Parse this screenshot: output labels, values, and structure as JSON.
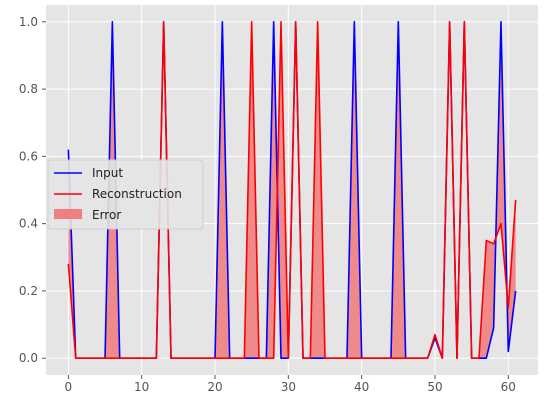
{
  "chart_data": {
    "type": "line",
    "title": "",
    "xlabel": "",
    "ylabel": "",
    "xlim": [
      -3.05,
      64.05
    ],
    "ylim": [
      -0.05,
      1.05
    ],
    "xticks": [
      0,
      10,
      20,
      30,
      40,
      50,
      60
    ],
    "yticks": [
      0.0,
      0.2,
      0.4,
      0.6,
      0.8,
      1.0
    ],
    "xtick_labels": [
      "0",
      "10",
      "20",
      "30",
      "40",
      "50",
      "60"
    ],
    "ytick_labels": [
      "0.0",
      "0.2",
      "0.4",
      "0.6",
      "0.8",
      "1.0"
    ],
    "grid": true,
    "background": "#e5e5e5",
    "legend_position": "center-left",
    "x": [
      0,
      1,
      2,
      3,
      4,
      5,
      6,
      7,
      8,
      9,
      10,
      11,
      12,
      13,
      14,
      15,
      16,
      17,
      18,
      19,
      20,
      21,
      22,
      23,
      24,
      25,
      26,
      27,
      28,
      29,
      30,
      31,
      32,
      33,
      34,
      35,
      36,
      37,
      38,
      39,
      40,
      41,
      42,
      43,
      44,
      45,
      46,
      47,
      48,
      49,
      50,
      51,
      52,
      53,
      54,
      55,
      56,
      57,
      58,
      59,
      60,
      61
    ],
    "series": [
      {
        "name": "Input",
        "color": "#0000ff",
        "values": [
          0.62,
          0,
          0,
          0,
          0,
          0,
          1,
          0,
          0,
          0,
          0,
          0,
          0,
          1,
          0,
          0,
          0,
          0,
          0,
          0,
          0,
          1,
          0,
          0,
          0,
          0,
          0,
          0,
          1,
          0,
          0,
          1,
          0,
          0,
          0,
          0,
          0,
          0,
          0,
          1,
          0,
          0,
          0,
          0,
          0,
          1,
          0,
          0,
          0,
          0,
          0.06,
          0,
          1,
          0,
          1,
          0,
          0,
          0,
          0.09,
          1,
          0.02,
          0.2
        ]
      },
      {
        "name": "Reconstruction",
        "color": "#ff0000",
        "values": [
          0.28,
          0,
          0,
          0,
          0,
          0,
          0,
          0,
          0,
          0,
          0,
          0,
          0,
          1,
          0,
          0,
          0,
          0,
          0,
          0,
          0,
          0,
          0,
          0,
          0,
          1,
          0,
          0,
          0,
          1,
          0,
          1,
          0,
          0,
          1,
          0,
          0,
          0,
          0,
          0,
          0,
          0,
          0,
          0,
          0,
          0,
          0,
          0,
          0,
          0,
          0.07,
          0,
          1,
          0,
          1,
          0,
          0,
          0.35,
          0.34,
          0.4,
          0.15,
          0.47
        ]
      }
    ],
    "error_area": {
      "name": "Error",
      "color": "#f08080",
      "between": [
        "Input",
        "Reconstruction"
      ]
    }
  }
}
